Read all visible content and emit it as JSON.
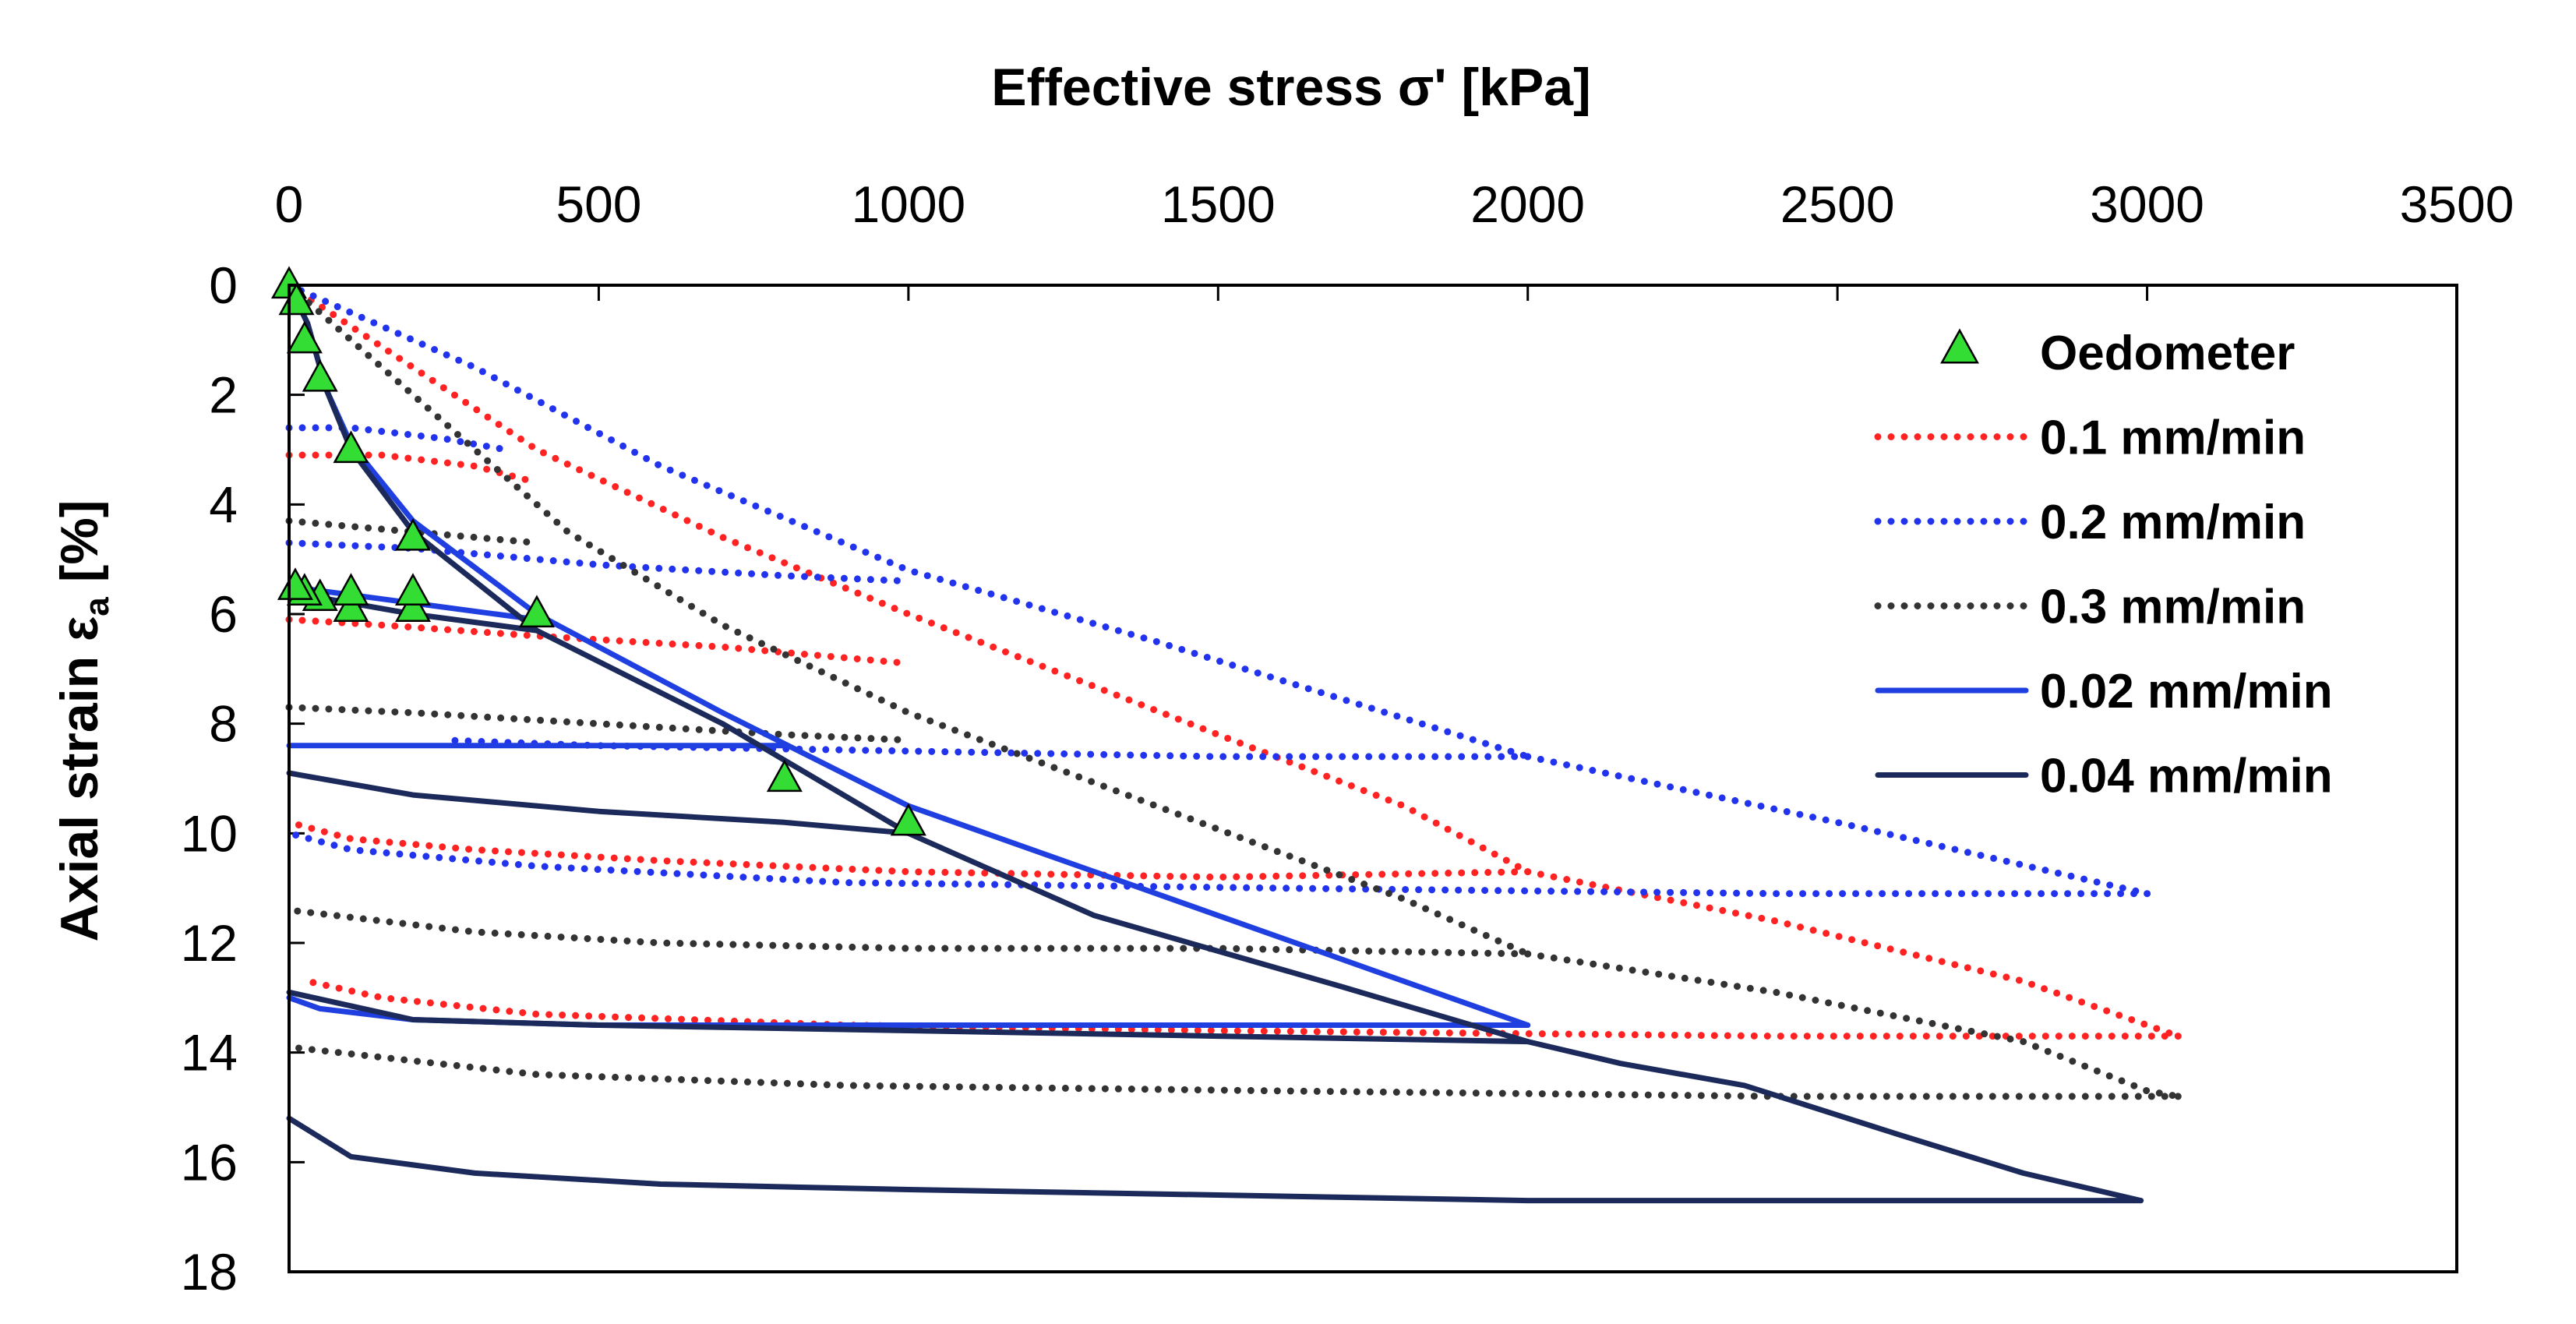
{
  "chart_data": {
    "type": "line",
    "xlabel": "Effective stress σ' [kPa]",
    "ylabel": "Axial strain ε",
    "ylabel_subscript": "a",
    "ylabel_unit": " [%]",
    "xlim": [
      0,
      3500
    ],
    "ylim": [
      0,
      18
    ],
    "x_ticks": [
      "0",
      "500",
      "1000",
      "1500",
      "2000",
      "2500",
      "3000",
      "3500"
    ],
    "y_ticks": [
      "0",
      "2",
      "4",
      "6",
      "8",
      "10",
      "12",
      "14",
      "16",
      "18"
    ],
    "x_axis_position": "top",
    "y_axis_inverted": true,
    "grid": false,
    "legend_position": "top-right",
    "series": [
      {
        "name": "Oedometer",
        "style": "markers",
        "marker": "triangle",
        "color": "#33dd33",
        "points": [
          [
            0,
            0
          ],
          [
            12,
            0.3
          ],
          [
            25,
            1
          ],
          [
            50,
            1.7
          ],
          [
            100,
            3
          ],
          [
            200,
            4.6
          ],
          [
            400,
            6
          ],
          [
            800,
            9
          ],
          [
            1000,
            9.8
          ],
          [
            200,
            5.9
          ],
          [
            200,
            5.6
          ],
          [
            100,
            5.9
          ],
          [
            100,
            5.6
          ],
          [
            50,
            5.7
          ],
          [
            25,
            5.6
          ],
          [
            10,
            5.5
          ]
        ]
      },
      {
        "name": "0.1 mm/min",
        "style": "dotted",
        "color": "#ff2222",
        "paths": [
          [
            [
              0,
              0
            ],
            [
              200,
              1.5
            ],
            [
              400,
              3
            ],
            [
              700,
              4.6
            ],
            [
              1000,
              6
            ],
            [
              1500,
              8.2
            ],
            [
              1800,
              9.5
            ],
            [
              2000,
              10.7
            ]
          ],
          [
            [
              2000,
              10.7
            ],
            [
              1500,
              10.8
            ],
            [
              1000,
              10.7
            ],
            [
              600,
              10.5
            ],
            [
              300,
              10.3
            ],
            [
              100,
              10.1
            ],
            [
              0,
              9.8
            ]
          ],
          [
            [
              2000,
              10.7
            ],
            [
              2400,
              11.6
            ],
            [
              2800,
              12.7
            ],
            [
              3000,
              13.5
            ],
            [
              3050,
              13.7
            ]
          ],
          [
            [
              3050,
              13.7
            ],
            [
              2400,
              13.7
            ],
            [
              1500,
              13.6
            ],
            [
              900,
              13.5
            ],
            [
              400,
              13.3
            ],
            [
              150,
              13.0
            ],
            [
              30,
              12.7
            ]
          ],
          [
            [
              0,
              3.1
            ],
            [
              150,
              3.1
            ],
            [
              300,
              3.3
            ],
            [
              400,
              3.6
            ]
          ],
          [
            [
              0,
              6.1
            ],
            [
              150,
              6.2
            ],
            [
              400,
              6.4
            ],
            [
              700,
              6.6
            ],
            [
              1000,
              6.9
            ]
          ]
        ]
      },
      {
        "name": "0.2 mm/min",
        "style": "dotted",
        "color": "#2233ee",
        "paths": [
          [
            [
              0,
              0
            ],
            [
              300,
              1.5
            ],
            [
              600,
              3.3
            ],
            [
              1000,
              5.2
            ],
            [
              1400,
              6.5
            ],
            [
              2000,
              8.6
            ]
          ],
          [
            [
              2000,
              8.6
            ],
            [
              1500,
              8.6
            ],
            [
              1000,
              8.5
            ],
            [
              500,
              8.4
            ],
            [
              250,
              8.3
            ]
          ],
          [
            [
              2000,
              8.6
            ],
            [
              2500,
              9.8
            ],
            [
              3000,
              11.1
            ],
            [
              3000,
              11.1
            ]
          ],
          [
            [
              3000,
              11.1
            ],
            [
              2400,
              11.1
            ],
            [
              1600,
              11.0
            ],
            [
              900,
              10.9
            ],
            [
              400,
              10.6
            ],
            [
              100,
              10.3
            ],
            [
              0,
              10.0
            ]
          ],
          [
            [
              0,
              2.6
            ],
            [
              100,
              2.6
            ],
            [
              250,
              2.8
            ],
            [
              350,
              3.0
            ]
          ],
          [
            [
              0,
              4.7
            ],
            [
              200,
              4.8
            ],
            [
              500,
              5.1
            ],
            [
              800,
              5.3
            ],
            [
              1000,
              5.4
            ]
          ]
        ]
      },
      {
        "name": "0.3 mm/min",
        "style": "dotted",
        "color": "#333333",
        "paths": [
          [
            [
              0,
              0
            ],
            [
              150,
              1.5
            ],
            [
              300,
              3
            ],
            [
              450,
              4.5
            ],
            [
              700,
              6.2
            ],
            [
              1000,
              7.8
            ],
            [
              1400,
              9.5
            ],
            [
              1800,
              11.2
            ],
            [
              2000,
              12.2
            ]
          ],
          [
            [
              2000,
              12.2
            ],
            [
              1500,
              12.1
            ],
            [
              1000,
              12.1
            ],
            [
              600,
              12.0
            ],
            [
              300,
              11.8
            ],
            [
              0,
              11.4
            ]
          ],
          [
            [
              2000,
              12.2
            ],
            [
              2400,
              12.9
            ],
            [
              2800,
              13.8
            ],
            [
              3000,
              14.7
            ],
            [
              3050,
              14.8
            ]
          ],
          [
            [
              3050,
              14.8
            ],
            [
              2400,
              14.8
            ],
            [
              1600,
              14.7
            ],
            [
              900,
              14.6
            ],
            [
              400,
              14.4
            ],
            [
              0,
              13.9
            ]
          ],
          [
            [
              0,
              4.3
            ],
            [
              100,
              4.4
            ],
            [
              300,
              4.6
            ],
            [
              400,
              4.7
            ]
          ],
          [
            [
              0,
              7.7
            ],
            [
              200,
              7.8
            ],
            [
              500,
              8.0
            ],
            [
              800,
              8.2
            ],
            [
              1000,
              8.3
            ]
          ]
        ]
      },
      {
        "name": "0.02 mm/min",
        "style": "solid",
        "color": "#1f3fe0",
        "paths": [
          [
            [
              0,
              0
            ],
            [
              30,
              0.7
            ],
            [
              60,
              1.9
            ],
            [
              100,
              2.9
            ],
            [
              200,
              4.3
            ],
            [
              400,
              6.0
            ],
            [
              700,
              7.8
            ],
            [
              1000,
              9.5
            ],
            [
              1500,
              11.5
            ],
            [
              1800,
              12.7
            ],
            [
              2000,
              13.5
            ]
          ],
          [
            [
              2000,
              13.5
            ],
            [
              1500,
              13.5
            ],
            [
              1000,
              13.5
            ],
            [
              500,
              13.5
            ],
            [
              200,
              13.4
            ],
            [
              50,
              13.2
            ],
            [
              0,
              13.0
            ]
          ],
          [
            [
              0,
              5.5
            ],
            [
              200,
              5.8
            ],
            [
              400,
              6.1
            ]
          ],
          [
            [
              0,
              8.4
            ],
            [
              400,
              8.4
            ],
            [
              800,
              8.4
            ]
          ]
        ]
      },
      {
        "name": "0.04 mm/min",
        "style": "solid",
        "color": "#1b2a5a",
        "paths": [
          [
            [
              0,
              0
            ],
            [
              30,
              0.7
            ],
            [
              60,
              1.9
            ],
            [
              100,
              3.0
            ],
            [
              200,
              4.5
            ],
            [
              400,
              6.3
            ],
            [
              700,
              8.0
            ],
            [
              1000,
              10.0
            ],
            [
              1300,
              11.5
            ],
            [
              1700,
              12.8
            ],
            [
              2000,
              13.8
            ]
          ],
          [
            [
              2000,
              13.8
            ],
            [
              1500,
              13.7
            ],
            [
              1000,
              13.6
            ],
            [
              500,
              13.5
            ],
            [
              200,
              13.4
            ],
            [
              0,
              12.9
            ]
          ],
          [
            [
              2000,
              13.8
            ],
            [
              2150,
              14.2
            ],
            [
              2350,
              14.6
            ],
            [
              2600,
              15.5
            ],
            [
              2800,
              16.2
            ],
            [
              2990,
              16.7
            ]
          ],
          [
            [
              2990,
              16.7
            ],
            [
              2500,
              16.7
            ],
            [
              2000,
              16.7
            ],
            [
              1500,
              16.6
            ],
            [
              1000,
              16.5
            ],
            [
              600,
              16.4
            ],
            [
              300,
              16.2
            ],
            [
              100,
              15.9
            ],
            [
              0,
              15.2
            ]
          ],
          [
            [
              0,
              8.9
            ],
            [
              200,
              9.3
            ],
            [
              500,
              9.6
            ],
            [
              800,
              9.8
            ],
            [
              1000,
              10.0
            ]
          ],
          [
            [
              0,
              5.6
            ],
            [
              200,
              6.0
            ],
            [
              400,
              6.3
            ]
          ]
        ]
      }
    ]
  }
}
